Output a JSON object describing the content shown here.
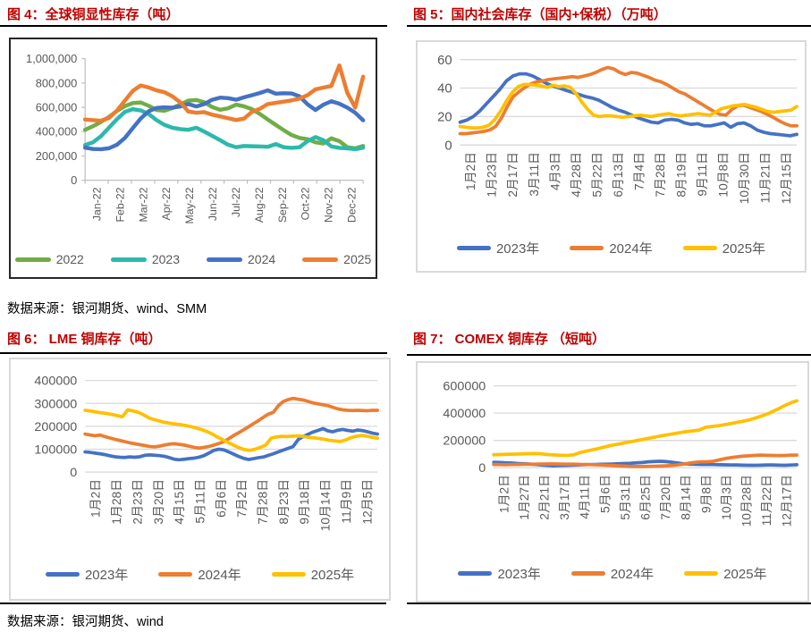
{
  "colors": {
    "title_red": "#C00000",
    "axis_text": "#595959",
    "gridline": "#D9D9D9",
    "axis_line": "#BFBFBF",
    "series_green": "#70AD47",
    "series_teal": "#2CB9AC",
    "series_blue": "#4472C4",
    "series_orange": "#ED7D31",
    "series_yellow": "#FFC000"
  },
  "source_notes": {
    "top": "数据来源：银河期货、wind、SMM",
    "bottom": "数据来源：银河期货、wind"
  },
  "figures": [
    {
      "id": "figure-4",
      "title": "图 4：全球铜显性库存（吨）",
      "chart_data": {
        "type": "line",
        "title": "全球铜显性库存（吨）",
        "ylim": [
          0,
          1000000
        ],
        "ystep": 200000,
        "y_format": "comma",
        "grid": false,
        "legend_position": "bottom",
        "x_tick_labels": [
          "Jan-22",
          "Feb-22",
          "Mar-22",
          "Apr-22",
          "May-22",
          "Jun-22",
          "Jul-22",
          "Aug-22",
          "Sep-22",
          "Oct-22",
          "Nov-22",
          "Dec-22"
        ],
        "series": [
          {
            "name": "2022",
            "color": "#70AD47",
            "values": [
              415000,
              445000,
              480000,
              520000,
              570000,
              610000,
              635000,
              640000,
              612000,
              578000,
              572000,
              595000,
              625000,
              655000,
              660000,
              642000,
              602000,
              580000,
              592000,
              622000,
              608000,
              585000,
              545000,
              500000,
              455000,
              412000,
              372000,
              348000,
              338000,
              312000,
              302000,
              345000,
              322000,
              272000,
              262000,
              282000
            ]
          },
          {
            "name": "2023",
            "color": "#2CB9AC",
            "values": [
              290000,
              312000,
              362000,
              432000,
              502000,
              562000,
              585000,
              575000,
              545000,
              495000,
              455000,
              432000,
              420000,
              415000,
              432000,
              400000,
              365000,
              330000,
              292000,
              272000,
              282000,
              280000,
              278000,
              275000,
              297000,
              272000,
              266000,
              272000,
              322000,
              355000,
              330000,
              278000,
              266000,
              262000,
              255000,
              268000
            ]
          },
          {
            "name": "2024",
            "color": "#4472C4",
            "values": [
              268000,
              257000,
              255000,
              263000,
              292000,
              348000,
              428000,
              508000,
              568000,
              595000,
              600000,
              597000,
              607000,
              627000,
              607000,
              627000,
              662000,
              680000,
              675000,
              662000,
              682000,
              700000,
              718000,
              740000,
              712000,
              716000,
              714000,
              690000,
              625000,
              578000,
              622000,
              650000,
              630000,
              598000,
              556000,
              493000
            ]
          },
          {
            "name": "2025",
            "color": "#ED7D31",
            "values": [
              500000,
              494000,
              490000,
              512000,
              572000,
              655000,
              735000,
              780000,
              763000,
              740000,
              724000,
              690000,
              640000,
              565000,
              556000,
              560000,
              540000,
              525000,
              510000,
              495000,
              507000,
              562000,
              588000,
              627000,
              637000,
              647000,
              657000,
              672000,
              700000,
              748000,
              762000,
              775000,
              945000,
              720000,
              598000,
              852000
            ]
          }
        ]
      }
    },
    {
      "id": "figure-5",
      "title": "图 5：国内社会库存（国内+保税）（万吨）",
      "chart_data": {
        "type": "line",
        "title": "国内社会库存（国内+保税）（万吨）",
        "ylim": [
          0,
          60
        ],
        "ystep": 20,
        "y_format": "plain",
        "grid": true,
        "legend_position": "bottom",
        "x_tick_labels": [
          "1月2日",
          "1月23日",
          "2月17日",
          "3月11日",
          "4月3日",
          "4月28日",
          "5月22日",
          "6月13日",
          "7月4日",
          "7月28日",
          "8月19日",
          "9月11日",
          "10月8日",
          "10月30日",
          "11月21日",
          "12月15日"
        ],
        "series": [
          {
            "name": "2023年",
            "color": "#4472C4",
            "values": [
              16,
              17.5,
              20,
              24,
              29,
              34,
              39,
              45,
              48.5,
              50,
              50,
              48.5,
              46,
              43.5,
              41.5,
              40,
              38.5,
              37,
              35.5,
              34,
              33,
              31.5,
              29,
              26.5,
              24.5,
              23,
              21,
              19,
              17.5,
              16,
              15.5,
              17.5,
              18,
              17.5,
              15.5,
              14.5,
              15,
              13.5,
              13.5,
              14.5,
              15.5,
              12.5,
              15,
              15.5,
              13.5,
              10.5,
              9,
              8,
              7.5,
              7,
              6.5,
              7.5
            ]
          },
          {
            "name": "2024年",
            "color": "#ED7D31",
            "values": [
              8,
              8,
              8.5,
              9,
              9.5,
              10.5,
              13,
              19,
              27,
              34,
              37.5,
              40.5,
              43,
              44.5,
              45,
              46,
              46.5,
              47,
              47.5,
              48,
              47.5,
              48.5,
              49.5,
              51,
              53,
              54.5,
              53.5,
              51,
              49.5,
              51,
              50.5,
              49,
              47.5,
              45.5,
              44.5,
              42.5,
              40,
              37.5,
              36,
              33.5,
              31,
              28.5,
              26,
              23.5,
              21.5,
              21,
              25,
              27.5,
              28,
              26.5,
              25,
              23.5,
              21.5,
              19.5,
              17,
              15,
              13.5,
              13.5
            ]
          },
          {
            "name": "2025年",
            "color": "#FFC000",
            "values": [
              13,
              12.5,
              12,
              12,
              12.5,
              14,
              18,
              24,
              31,
              37,
              41,
              42.5,
              42.5,
              42,
              41.5,
              40.5,
              42,
              41,
              41.5,
              40.5,
              36,
              30,
              25,
              21,
              20,
              20.5,
              20.5,
              20,
              19.5,
              20,
              20.5,
              21,
              20.5,
              20,
              21,
              21.5,
              22,
              21,
              20.5,
              21,
              21.5,
              22,
              21.5,
              21,
              23,
              25.5,
              26.5,
              27.5,
              28,
              28.5,
              27.5,
              26.5,
              25,
              23.5,
              23,
              23.5,
              24,
              24.5,
              27
            ]
          }
        ]
      }
    },
    {
      "id": "figure-6",
      "title": "图 6： LME 铜库存（吨）",
      "chart_data": {
        "type": "line",
        "title": "LME 铜库存（吨）",
        "ylim": [
          0,
          400000
        ],
        "ystep": 100000,
        "y_format": "plain",
        "grid": true,
        "legend_position": "bottom",
        "x_tick_labels": [
          "1月2日",
          "1月28日",
          "2月23日",
          "3月20日",
          "4月15日",
          "5月11日",
          "6月6日",
          "7月2日",
          "7月28日",
          "8月23日",
          "9月18日",
          "10月14日",
          "11月9日",
          "12月5日"
        ],
        "series": [
          {
            "name": "2023年",
            "color": "#4472C4",
            "values": [
              88000,
              86000,
              83000,
              80000,
              76000,
              71000,
              67000,
              65000,
              64000,
              66000,
              65000,
              67000,
              73000,
              75000,
              74000,
              72000,
              69000,
              63000,
              56000,
              54000,
              56000,
              59000,
              61000,
              65000,
              72000,
              83000,
              95000,
              100000,
              97000,
              88000,
              78000,
              68000,
              60000,
              55000,
              59000,
              63000,
              66000,
              73000,
              80000,
              88000,
              96000,
              104000,
              112000,
              142000,
              155000,
              165000,
              175000,
              182000,
              190000,
              180000,
              176000,
              183000,
              186000,
              182000,
              179000,
              184000,
              181000,
              176000,
              170000,
              166000
            ]
          },
          {
            "name": "2024年",
            "color": "#ED7D31",
            "values": [
              166000,
              162000,
              159000,
              162000,
              155000,
              149000,
              143000,
              138000,
              133000,
              128000,
              124000,
              120000,
              116000,
              112000,
              110000,
              113000,
              118000,
              122000,
              124000,
              121000,
              118000,
              113000,
              108000,
              105000,
              108000,
              112000,
              118000,
              125000,
              133000,
              146000,
              160000,
              172000,
              185000,
              198000,
              212000,
              225000,
              240000,
              253000,
              261000,
              290000,
              308000,
              317000,
              322000,
              318000,
              315000,
              309000,
              302000,
              298000,
              294000,
              290000,
              283000,
              276000,
              272000,
              270000,
              269000,
              270000,
              269000,
              268000,
              270000,
              270000
            ]
          },
          {
            "name": "2025年",
            "color": "#FFC000",
            "values": [
              270000,
              267000,
              263000,
              259000,
              256000,
              252000,
              247000,
              241000,
              272000,
              267000,
              261000,
              250000,
              237000,
              229000,
              223000,
              217000,
              213000,
              210000,
              207000,
              203000,
              198000,
              192000,
              185000,
              176000,
              165000,
              152000,
              140000,
              128000,
              117000,
              106000,
              98000,
              95000,
              100000,
              108000,
              118000,
              148000,
              154000,
              156000,
              155000,
              157000,
              158000,
              156000,
              152000,
              150000,
              147000,
              143000,
              139000,
              136000,
              134000,
              140000,
              150000,
              156000,
              160000,
              157000,
              152000,
              148000
            ]
          }
        ]
      }
    },
    {
      "id": "figure-7",
      "title": "图 7： COMEX 铜库存 （短吨）",
      "chart_data": {
        "type": "line",
        "title": "COMEX 铜库存（短吨）",
        "ylim": [
          0,
          600000
        ],
        "ystep": 200000,
        "y_format": "plain",
        "grid": true,
        "legend_position": "bottom",
        "x_tick_labels": [
          "1月2日",
          "1月27日",
          "2月21日",
          "3月17日",
          "4月11日",
          "5月6日",
          "5月31日",
          "6月25日",
          "7月20日",
          "8月14日",
          "9月8日",
          "10月3日",
          "10月28日",
          "11月22日",
          "12月17日"
        ],
        "series": [
          {
            "name": "2023年",
            "color": "#4472C4",
            "values": [
              40000,
              38000,
              36000,
              34000,
              31000,
              29000,
              27000,
              24000,
              20000,
              17000,
              15000,
              16000,
              17000,
              19000,
              20000,
              22000,
              23000,
              24000,
              25000,
              26000,
              27000,
              29000,
              31000,
              33000,
              36000,
              39000,
              43000,
              46000,
              48000,
              45000,
              40000,
              34000,
              29000,
              26000,
              25000,
              24000,
              24000,
              23000,
              22000,
              21000,
              20000,
              20000,
              19000,
              18000,
              18000,
              19000,
              20000,
              20000,
              19000,
              18000,
              20000,
              22000
            ]
          },
          {
            "name": "2024年",
            "color": "#ED7D31",
            "values": [
              24000,
              23000,
              22000,
              23000,
              24000,
              25000,
              25000,
              26000,
              27000,
              28000,
              28000,
              27000,
              26000,
              26000,
              25000,
              24000,
              23000,
              22000,
              20000,
              18000,
              16000,
              14000,
              12000,
              10000,
              9000,
              9000,
              10000,
              11000,
              12000,
              14000,
              17000,
              21000,
              27000,
              34000,
              40000,
              43000,
              44000,
              48000,
              58000,
              68000,
              74000,
              80000,
              85000,
              88000,
              91000,
              92000,
              91000,
              90000,
              89000,
              90000,
              92000,
              93000
            ]
          },
          {
            "name": "2025年",
            "color": "#FFC000",
            "values": [
              95000,
              97000,
              98000,
              99000,
              100000,
              101000,
              103000,
              104000,
              103000,
              98000,
              95000,
              92000,
              91000,
              90000,
              95000,
              110000,
              120000,
              129000,
              138000,
              148000,
              158000,
              167000,
              175000,
              183000,
              191000,
              199000,
              207000,
              215000,
              223000,
              231000,
              239000,
              246000,
              253000,
              260000,
              266000,
              271000,
              277000,
              296000,
              301000,
              306000,
              313000,
              320000,
              328000,
              336000,
              344000,
              354000,
              367000,
              381000,
              396000,
              416000,
              436000,
              458000,
              476000,
              490000
            ]
          }
        ]
      }
    }
  ]
}
